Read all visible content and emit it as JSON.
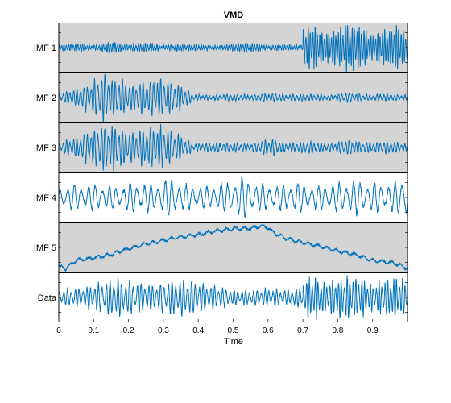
{
  "chart_data": {
    "type": "line",
    "title": "VMD",
    "xlabel": "Time",
    "xlim": [
      0,
      1
    ],
    "x_ticks": [
      "0",
      "0.1",
      "0.2",
      "0.3",
      "0.4",
      "0.5",
      "0.6",
      "0.7",
      "0.8",
      "0.9"
    ],
    "grid": false,
    "line_color": "#0072BD",
    "panels": [
      {
        "label": "IMF 1",
        "background": "#d4d4d4",
        "ylim": [
          -1,
          1
        ],
        "segments": [
          {
            "t0": 0.0,
            "t1": 0.7,
            "freq": 150,
            "amps": [
              0.12,
              0.18,
              0.1,
              0.25,
              0.12,
              0.22,
              0.1,
              0.15,
              0.12,
              0.08,
              0.15,
              0.2,
              0.1,
              0.12,
              0.1
            ]
          },
          {
            "t0": 0.7,
            "t1": 1.0,
            "freq": 150,
            "amps": [
              0.85,
              0.9,
              0.6,
              0.8,
              0.95,
              0.9,
              0.55,
              0.8,
              0.95,
              0.75
            ]
          }
        ]
      },
      {
        "label": "IMF 2",
        "background": "#d4d4d4",
        "ylim": [
          -1,
          1
        ],
        "segments": [
          {
            "t0": 0.0,
            "t1": 0.38,
            "freq": 100,
            "amps": [
              0.15,
              0.35,
              0.55,
              0.95,
              0.8,
              0.55,
              0.75,
              0.8,
              0.6,
              0.25
            ]
          },
          {
            "t0": 0.38,
            "t1": 1.0,
            "freq": 100,
            "amps": [
              0.12,
              0.1,
              0.15,
              0.1,
              0.18,
              0.12,
              0.15,
              0.1,
              0.2,
              0.12,
              0.15,
              0.1
            ]
          }
        ]
      },
      {
        "label": "IMF 3",
        "background": "#d4d4d4",
        "ylim": [
          -1,
          1
        ],
        "segments": [
          {
            "t0": 0.0,
            "t1": 0.38,
            "freq": 100,
            "amps": [
              0.2,
              0.4,
              0.65,
              0.95,
              0.85,
              0.6,
              0.8,
              0.85,
              0.55,
              0.25
            ]
          },
          {
            "t0": 0.38,
            "t1": 1.0,
            "freq": 100,
            "amps": [
              0.15,
              0.18,
              0.2,
              0.15,
              0.35,
              0.18,
              0.25,
              0.15,
              0.3,
              0.2,
              0.25,
              0.15
            ]
          }
        ]
      },
      {
        "label": "IMF 4",
        "background": "#ffffff",
        "ylim": [
          -1,
          1
        ],
        "segments": [
          {
            "t0": 0.0,
            "t1": 1.0,
            "freq": 50,
            "amps": [
              0.45,
              0.5,
              0.55,
              0.45,
              0.6,
              0.55,
              0.8,
              0.5,
              0.45,
              0.6,
              0.85,
              0.55,
              0.5,
              0.6,
              0.45,
              0.55,
              0.7,
              0.6,
              0.55,
              0.95
            ]
          }
        ]
      },
      {
        "label": "IMF 5",
        "background": "#d4d4d4",
        "ylim": [
          -1,
          1
        ],
        "trend": [
          [
            0.0,
            -0.8
          ],
          [
            0.02,
            -0.9
          ],
          [
            0.05,
            -0.55
          ],
          [
            0.1,
            -0.45
          ],
          [
            0.15,
            -0.3
          ],
          [
            0.2,
            -0.05
          ],
          [
            0.25,
            0.15
          ],
          [
            0.3,
            0.3
          ],
          [
            0.35,
            0.45
          ],
          [
            0.4,
            0.55
          ],
          [
            0.45,
            0.7
          ],
          [
            0.5,
            0.8
          ],
          [
            0.55,
            0.82
          ],
          [
            0.58,
            0.92
          ],
          [
            0.6,
            0.85
          ],
          [
            0.62,
            0.6
          ],
          [
            0.65,
            0.4
          ],
          [
            0.7,
            0.2
          ],
          [
            0.75,
            0.05
          ],
          [
            0.8,
            -0.15
          ],
          [
            0.85,
            -0.3
          ],
          [
            0.88,
            -0.45
          ],
          [
            0.9,
            -0.55
          ],
          [
            0.93,
            -0.6
          ],
          [
            0.96,
            -0.65
          ],
          [
            0.98,
            -0.78
          ],
          [
            1.0,
            -0.9
          ]
        ],
        "ripple": 0.1
      },
      {
        "label": "Data",
        "background": "#ffffff",
        "ylim": [
          -1,
          1
        ],
        "segments": [
          {
            "t0": 0.0,
            "t1": 0.7,
            "freq": 90,
            "amps": [
              0.3,
              0.4,
              0.55,
              0.8,
              0.65,
              0.55,
              0.7,
              0.75,
              0.55,
              0.35,
              0.3,
              0.35,
              0.3,
              0.4
            ]
          },
          {
            "t0": 0.7,
            "t1": 1.0,
            "freq": 120,
            "amps": [
              0.75,
              0.85,
              0.6,
              0.8,
              0.95,
              0.8,
              0.55,
              0.75,
              0.85,
              0.7
            ]
          }
        ]
      }
    ]
  }
}
